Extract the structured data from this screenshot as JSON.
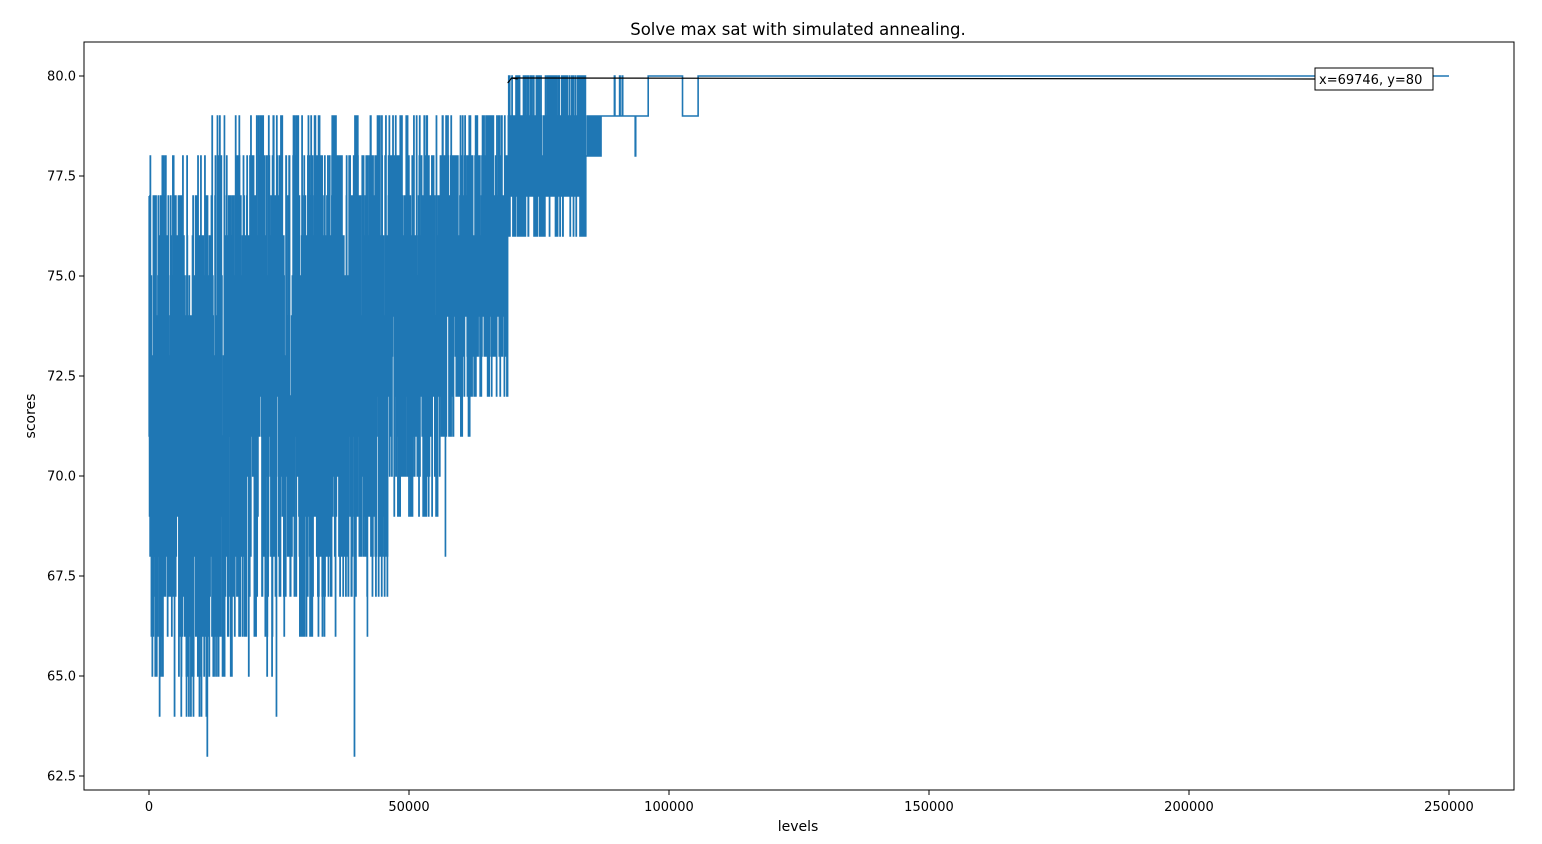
{
  "chart_data": {
    "type": "line",
    "title": "Solve max sat with simulated annealing.",
    "xlabel": "levels",
    "ylabel": "scores",
    "xlim": [
      -12500,
      262500
    ],
    "ylim": [
      62.15,
      80.85
    ],
    "xticks": [
      0,
      50000,
      100000,
      150000,
      200000,
      250000
    ],
    "xtick_labels": [
      "0",
      "50000",
      "100000",
      "150000",
      "200000",
      "250000"
    ],
    "yticks": [
      62.5,
      65.0,
      67.5,
      70.0,
      72.5,
      75.0,
      77.5,
      80.0
    ],
    "ytick_labels": [
      "62.5",
      "65.0",
      "67.5",
      "70.0",
      "72.5",
      "75.0",
      "77.5",
      "80.0"
    ],
    "grid": false,
    "line_color": "#1f77b4",
    "noisy_bands": [
      {
        "x_start": 0,
        "x_end": 12000,
        "y_low": 64,
        "y_high": 78
      },
      {
        "x_start": 12000,
        "x_end": 24000,
        "y_low": 65,
        "y_high": 79
      },
      {
        "x_start": 24000,
        "x_end": 36000,
        "y_low": 66,
        "y_high": 79
      },
      {
        "x_start": 36000,
        "x_end": 46000,
        "y_low": 67,
        "y_high": 79
      },
      {
        "x_start": 46000,
        "x_end": 56000,
        "y_low": 69,
        "y_high": 79
      },
      {
        "x_start": 56000,
        "x_end": 62000,
        "y_low": 71,
        "y_high": 79
      },
      {
        "x_start": 62000,
        "x_end": 69000,
        "y_low": 72,
        "y_high": 79
      },
      {
        "x_start": 69000,
        "x_end": 76000,
        "y_low": 76,
        "y_high": 80
      },
      {
        "x_start": 76000,
        "x_end": 84000,
        "y_low": 76,
        "y_high": 80
      },
      {
        "x_start": 84000,
        "x_end": 87000,
        "y_low": 78,
        "y_high": 79
      }
    ],
    "spikes": [
      {
        "x": 11200,
        "y": 63
      },
      {
        "x": 39500,
        "y": 63
      },
      {
        "x": 14500,
        "y": 79
      },
      {
        "x": 32000,
        "y": 79
      },
      {
        "x": 1500,
        "y": 65
      },
      {
        "x": 24500,
        "y": 64
      },
      {
        "x": 57000,
        "y": 68
      },
      {
        "x": 42000,
        "y": 66
      }
    ],
    "series": [
      {
        "x": [
          87000,
          89500,
          89600,
          90500,
          90600,
          91000,
          91100,
          93500,
          93600,
          94000,
          94100,
          96000,
          96100,
          102500,
          102600,
          105500,
          105600,
          250000
        ],
        "y": [
          79,
          80,
          79,
          80,
          79,
          80,
          79,
          78,
          79,
          79,
          79,
          80,
          80,
          80,
          79,
          79,
          80,
          80
        ]
      }
    ],
    "annotation": {
      "text": "x=69746, y=80",
      "point_x": 69746,
      "point_y": 80
    }
  }
}
